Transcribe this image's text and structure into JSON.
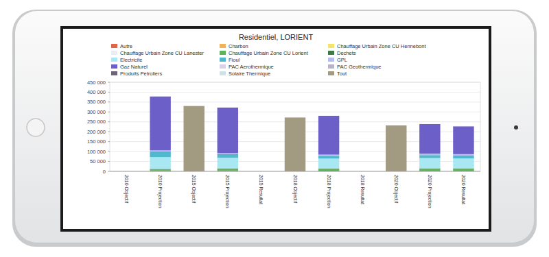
{
  "chart_data": {
    "type": "bar",
    "title": "Residentiel, LORIENT",
    "stacked": true,
    "grid": true,
    "legend": "top",
    "categories": [
      "2010 Objectif",
      "2010 Projection",
      "2015 Objectif",
      "2015 Projection",
      "2015 Resultat",
      "2018 Objectif",
      "2018 Projection",
      "2018 Resultat",
      "2020 Objectif",
      "2020 Projection",
      "2020 Resultat"
    ],
    "ylim": [
      0,
      450000
    ],
    "yticks": [
      0,
      {
        "value": 50000,
        "label": "50 000"
      },
      {
        "value": 100000,
        "label": "100 000"
      },
      {
        "value": 150000,
        "label": "150 000"
      },
      {
        "value": 200000,
        "label": "200 000"
      },
      {
        "value": 250000,
        "label": "250 000"
      },
      {
        "value": 300000,
        "label": "300 000"
      },
      {
        "value": 350000,
        "label": "350 000"
      },
      {
        "value": 400000,
        "label": "400 000"
      },
      {
        "value": 450000,
        "label": "450 000"
      }
    ],
    "series": [
      {
        "name": "Autre",
        "color": "#e0664a",
        "values": [
          0,
          4000,
          0,
          4000,
          0,
          0,
          3500,
          0,
          0,
          3000,
          3000
        ]
      },
      {
        "name": "Charbon",
        "color": "#f2b25c",
        "values": [
          0,
          0,
          0,
          0,
          0,
          0,
          0,
          0,
          0,
          0,
          0
        ]
      },
      {
        "name": "Chauffage Urbain Zone CU Hennebont",
        "color": "#f3e36a",
        "values": [
          0,
          0,
          0,
          0,
          0,
          0,
          0,
          0,
          0,
          0,
          0
        ]
      },
      {
        "name": "Chauffage Urbain Zone CU Lanester",
        "color": "#e8eef0",
        "values": [
          0,
          0,
          0,
          0,
          0,
          0,
          0,
          0,
          0,
          0,
          0
        ]
      },
      {
        "name": "Chauffage Urbain Zone CU Lorient",
        "color": "#5fb35a",
        "values": [
          0,
          6000,
          0,
          8000,
          0,
          0,
          9000,
          0,
          0,
          10000,
          10000
        ]
      },
      {
        "name": "Dechets",
        "color": "#3d7a45",
        "values": [
          0,
          2000,
          0,
          2000,
          0,
          0,
          2000,
          0,
          0,
          2000,
          2000
        ]
      },
      {
        "name": "Electricite",
        "color": "#a9e8f2",
        "values": [
          0,
          60000,
          0,
          55000,
          0,
          0,
          50000,
          0,
          0,
          52000,
          50000
        ]
      },
      {
        "name": "Fioul",
        "color": "#4fb8cc",
        "values": [
          0,
          28000,
          0,
          18000,
          0,
          0,
          12000,
          0,
          0,
          15000,
          15000
        ]
      },
      {
        "name": "GPL",
        "color": "#b4bdf2",
        "values": [
          0,
          6000,
          0,
          5000,
          0,
          0,
          8000,
          0,
          0,
          7000,
          7000
        ]
      },
      {
        "name": "Gaz Naturel",
        "color": "#6c60c8",
        "values": [
          0,
          272000,
          0,
          230000,
          0,
          0,
          196000,
          0,
          0,
          150000,
          140000
        ]
      },
      {
        "name": "PAC Aerothermique",
        "color": "#d8d2e8",
        "values": [
          0,
          0,
          0,
          0,
          0,
          0,
          0,
          0,
          0,
          0,
          0
        ]
      },
      {
        "name": "PAC Geothermique",
        "color": "#b9b3c9",
        "values": [
          0,
          0,
          0,
          0,
          0,
          0,
          0,
          0,
          0,
          0,
          0
        ]
      },
      {
        "name": "Produits Petroliers",
        "color": "#6e6478",
        "values": [
          0,
          0,
          0,
          0,
          0,
          0,
          0,
          0,
          0,
          0,
          0
        ]
      },
      {
        "name": "Solaire Thermique",
        "color": "#cfe3e6",
        "values": [
          0,
          0,
          0,
          0,
          0,
          0,
          0,
          0,
          0,
          0,
          0
        ]
      },
      {
        "name": "Tout",
        "color": "#a39a82",
        "values": [
          0,
          0,
          330000,
          0,
          0,
          272000,
          0,
          0,
          232000,
          0,
          0
        ]
      }
    ]
  }
}
